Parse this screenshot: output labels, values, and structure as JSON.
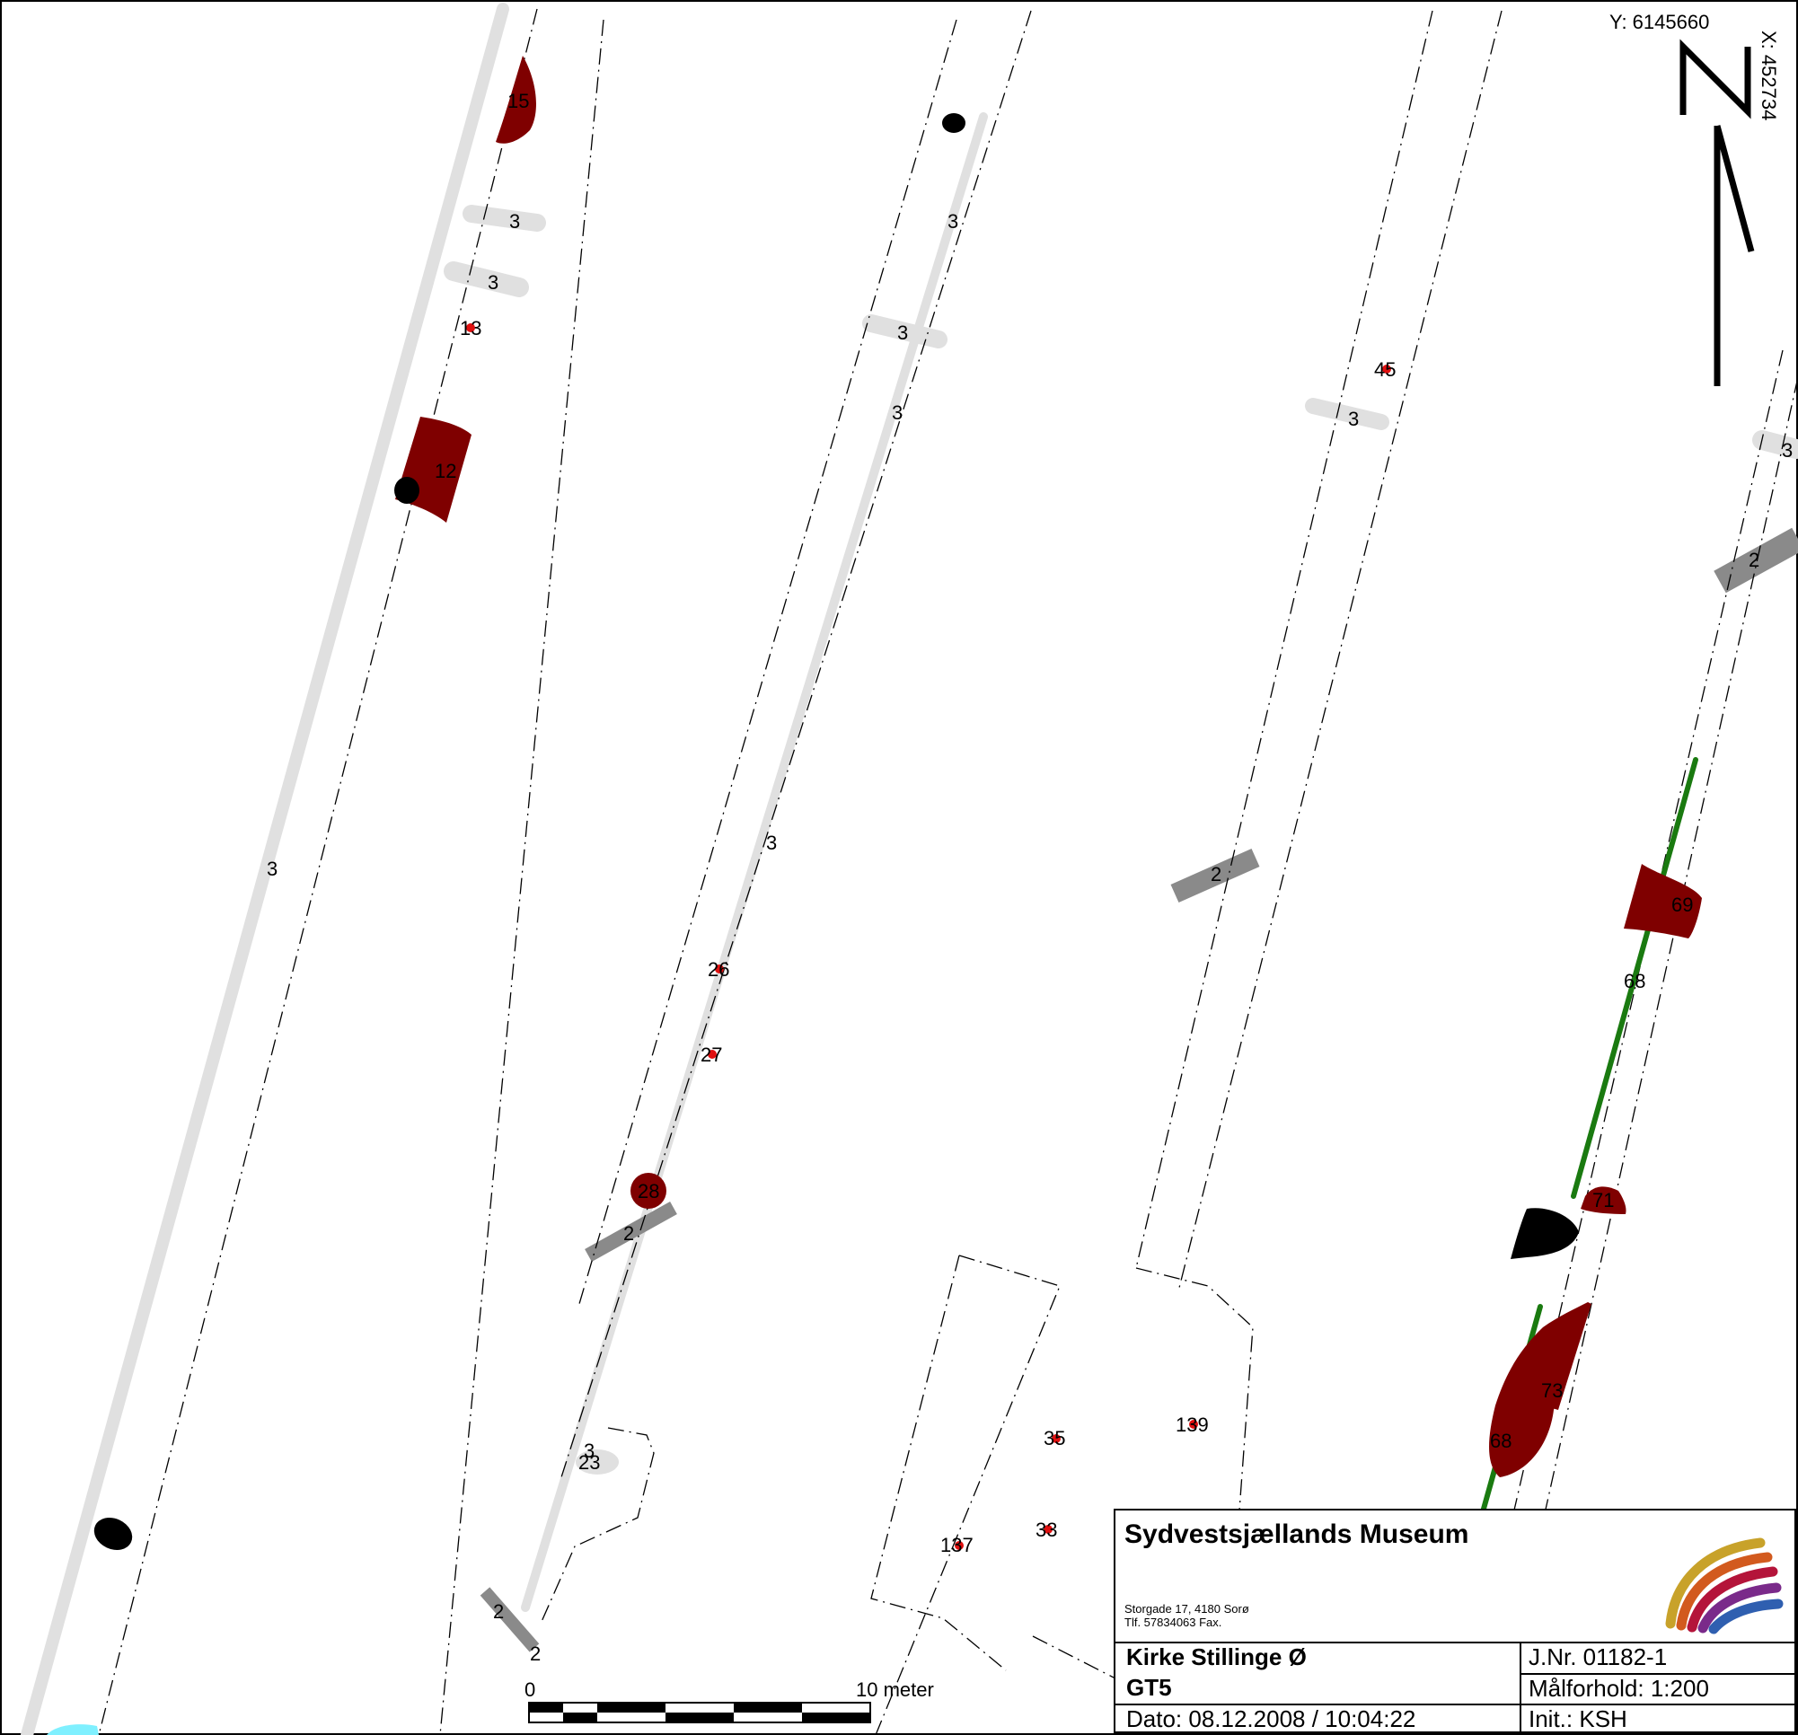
{
  "map": {
    "coord_y": "Y: 6145660",
    "coord_x": "X: 452734",
    "north_arrow": "north-arrow-icon",
    "labels": {
      "f15": "15",
      "f12": "12",
      "f13": "13",
      "f45": "45",
      "f26": "26",
      "f27": "27",
      "f28": "28",
      "f23": "23",
      "f35": "35",
      "f33": "33",
      "f137": "137",
      "f139": "139",
      "f69": "69",
      "f68a": "68",
      "f68b": "68",
      "f71": "71",
      "f73": "73",
      "d3": "3",
      "d2": "2"
    },
    "scale_bar": {
      "start": "0",
      "end": "10 meter"
    },
    "colors": {
      "feature": "#7f0000",
      "ditch_light": "#e0e0e0",
      "ditch_dark": "#8a8a8a",
      "line_green": "#1a7a10",
      "find": "#e01010"
    }
  },
  "titleblock": {
    "museum": "Sydvestsjællands Museum",
    "address": "Storgade 17, 4180 Sorø",
    "phone": "Tlf. 57834063 Fax.",
    "site": "Kirke Stillinge Ø",
    "sub": "GT5",
    "jnr": "J.Nr. 01182-1",
    "scale": "Målforhold: 1:200",
    "date": "Dato: 08.12.2008 / 10:04:22",
    "init": "Init.: KSH"
  }
}
